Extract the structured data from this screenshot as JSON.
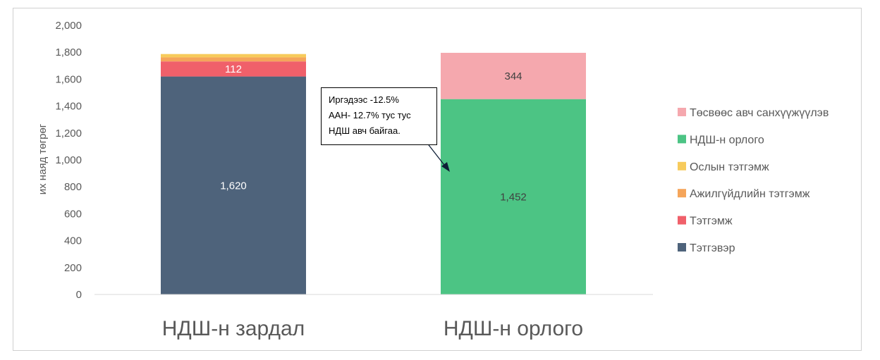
{
  "chart_data": {
    "type": "stacked-bar",
    "categories": [
      "НДШ-н зардал",
      "НДШ-н орлого"
    ],
    "ylabel": "их наяд төгрөг",
    "ylim": [
      0,
      2000
    ],
    "yticks": [
      "0",
      "200",
      "400",
      "600",
      "800",
      "1,000",
      "1,200",
      "1,400",
      "1,600",
      "1,800",
      "2,000"
    ],
    "grid": false,
    "legend_position": "right",
    "series": [
      {
        "name": "Тэтгэвэр",
        "color": "#4e637b",
        "values": [
          1620,
          0
        ],
        "labels": [
          "1,620",
          ""
        ]
      },
      {
        "name": "Тэтгэмж",
        "color": "#f0606a",
        "values": [
          112,
          0
        ],
        "labels": [
          "112",
          ""
        ]
      },
      {
        "name": "Ажилгүйдлийн тэтгэмж",
        "color": "#f5a55a",
        "values": [
          30,
          0
        ],
        "labels": [
          "",
          ""
        ]
      },
      {
        "name": "Ослын тэтгэмж",
        "color": "#f7cb5c",
        "values": [
          25,
          0
        ],
        "labels": [
          "",
          ""
        ]
      },
      {
        "name": "НДШ-н орлого",
        "color": "#4cc484",
        "values": [
          0,
          1452
        ],
        "labels": [
          "",
          "1,452"
        ]
      },
      {
        "name": "Төсвөөс авч санхүүжүүлэв",
        "color": "#f5a8ae",
        "values": [
          0,
          344
        ],
        "labels": [
          "",
          "344"
        ]
      }
    ],
    "legend_order": [
      "Төсвөөс авч санхүүжүүлэв",
      "НДШ-н орлого",
      "Ослын тэтгэмж",
      "Ажилгүйдлийн тэтгэмж",
      "Тэтгэмж",
      "Тэтгэвэр"
    ],
    "annotation": {
      "lines": [
        "Иргэдээс -12.5%",
        "ААН- 12.7% тус тус",
        "НДШ авч байгаа."
      ]
    }
  }
}
